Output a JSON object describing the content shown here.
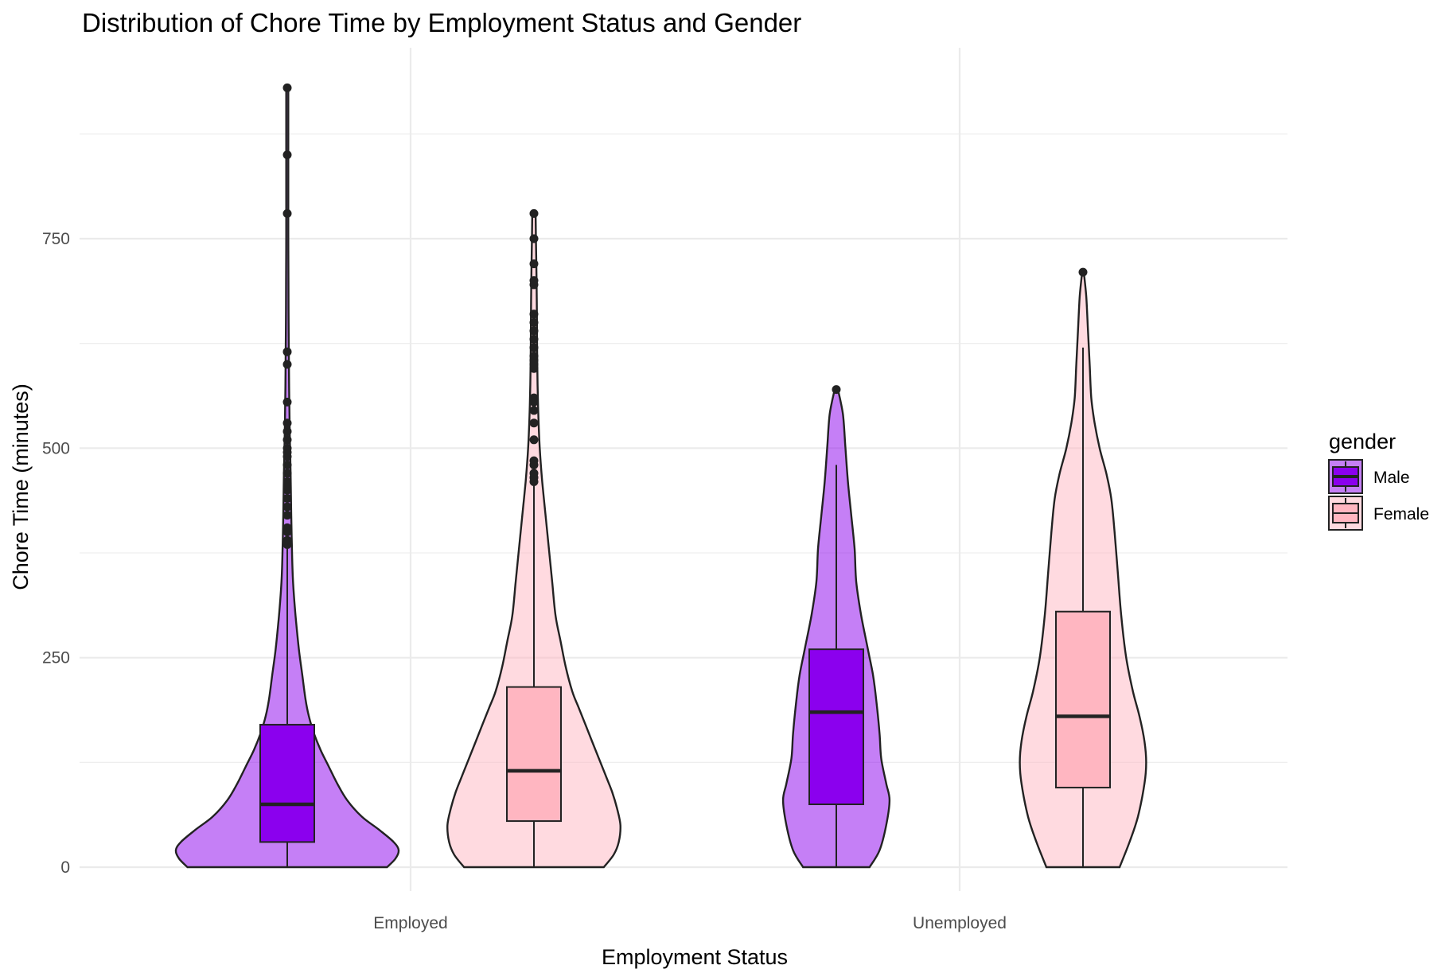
{
  "chart_data": {
    "type": "violin",
    "title": "Distribution of Chore Time by Employment Status and Gender",
    "xlabel": "Employment Status",
    "ylabel": "Chore Time (minutes)",
    "categories": [
      "Employed",
      "Unemployed"
    ],
    "ylim": [
      -30,
      980
    ],
    "yticks": [
      0,
      250,
      500,
      750
    ],
    "yminor": [
      125,
      375,
      625,
      875
    ],
    "legend": {
      "title": "gender",
      "position": "right"
    },
    "series": [
      {
        "name": "Male",
        "color": "#8B00EE",
        "violin_alpha": 0.5,
        "groups": [
          {
            "category": "Employed",
            "box": {
              "q1": 30,
              "median": 75,
              "q3": 170,
              "whisker_low": 0,
              "whisker_high": 380
            },
            "outliers": [
              385,
              390,
              400,
              405,
              420,
              430,
              440,
              450,
              455,
              460,
              470,
              480,
              490,
              495,
              500,
              510,
              520,
              530,
              555,
              600,
              615,
              780,
              850,
              930
            ],
            "density": [
              [
                0,
                0.6
              ],
              [
                10,
                0.65
              ],
              [
                20,
                0.67
              ],
              [
                30,
                0.64
              ],
              [
                45,
                0.55
              ],
              [
                60,
                0.45
              ],
              [
                80,
                0.36
              ],
              [
                100,
                0.3
              ],
              [
                120,
                0.25
              ],
              [
                140,
                0.2
              ],
              [
                160,
                0.16
              ],
              [
                180,
                0.13
              ],
              [
                200,
                0.11
              ],
              [
                230,
                0.09
              ],
              [
                260,
                0.07
              ],
              [
                300,
                0.05
              ],
              [
                340,
                0.035
              ],
              [
                380,
                0.028
              ],
              [
                420,
                0.024
              ],
              [
                470,
                0.02
              ],
              [
                520,
                0.015
              ],
              [
                560,
                0.012
              ],
              [
                600,
                0.01
              ],
              [
                650,
                0.008
              ],
              [
                700,
                0.007
              ],
              [
                760,
                0.006
              ],
              [
                820,
                0.006
              ],
              [
                880,
                0.006
              ],
              [
                930,
                0.006
              ]
            ]
          },
          {
            "category": "Unemployed",
            "box": {
              "q1": 75,
              "median": 185,
              "q3": 260,
              "whisker_low": 0,
              "whisker_high": 480
            },
            "outliers": [
              570
            ],
            "density": [
              [
                0,
                0.2
              ],
              [
                20,
                0.26
              ],
              [
                50,
                0.3
              ],
              [
                80,
                0.32
              ],
              [
                100,
                0.3
              ],
              [
                130,
                0.27
              ],
              [
                160,
                0.26
              ],
              [
                200,
                0.24
              ],
              [
                230,
                0.22
              ],
              [
                260,
                0.19
              ],
              [
                300,
                0.15
              ],
              [
                340,
                0.12
              ],
              [
                380,
                0.11
              ],
              [
                420,
                0.09
              ],
              [
                460,
                0.07
              ],
              [
                500,
                0.055
              ],
              [
                540,
                0.04
              ],
              [
                570,
                0.01
              ]
            ]
          }
        ]
      },
      {
        "name": "Female",
        "color": "#FFB6C1",
        "violin_alpha": 0.5,
        "groups": [
          {
            "category": "Employed",
            "box": {
              "q1": 55,
              "median": 115,
              "q3": 215,
              "whisker_low": 0,
              "whisker_high": 460
            },
            "outliers": [
              460,
              465,
              470,
              480,
              485,
              510,
              530,
              545,
              555,
              560,
              595,
              600,
              605,
              610,
              620,
              630,
              640,
              650,
              660,
              695,
              700,
              720,
              750,
              780
            ],
            "density": [
              [
                0,
                0.42
              ],
              [
                15,
                0.48
              ],
              [
                30,
                0.51
              ],
              [
                50,
                0.52
              ],
              [
                70,
                0.5
              ],
              [
                90,
                0.47
              ],
              [
                110,
                0.43
              ],
              [
                130,
                0.39
              ],
              [
                150,
                0.35
              ],
              [
                170,
                0.31
              ],
              [
                190,
                0.27
              ],
              [
                210,
                0.23
              ],
              [
                240,
                0.19
              ],
              [
                270,
                0.16
              ],
              [
                300,
                0.13
              ],
              [
                340,
                0.11
              ],
              [
                380,
                0.09
              ],
              [
                420,
                0.07
              ],
              [
                460,
                0.05
              ],
              [
                500,
                0.035
              ],
              [
                550,
                0.025
              ],
              [
                600,
                0.02
              ],
              [
                650,
                0.018
              ],
              [
                700,
                0.016
              ],
              [
                750,
                0.012
              ],
              [
                780,
                0.01
              ]
            ]
          },
          {
            "category": "Unemployed",
            "box": {
              "q1": 95,
              "median": 180,
              "q3": 305,
              "whisker_low": 0,
              "whisker_high": 620
            },
            "outliers": [
              710
            ],
            "density": [
              [
                0,
                0.22
              ],
              [
                30,
                0.28
              ],
              [
                60,
                0.33
              ],
              [
                100,
                0.37
              ],
              [
                125,
                0.38
              ],
              [
                150,
                0.37
              ],
              [
                180,
                0.34
              ],
              [
                210,
                0.3
              ],
              [
                250,
                0.26
              ],
              [
                300,
                0.23
              ],
              [
                350,
                0.21
              ],
              [
                400,
                0.19
              ],
              [
                440,
                0.17
              ],
              [
                470,
                0.14
              ],
              [
                500,
                0.1
              ],
              [
                530,
                0.07
              ],
              [
                560,
                0.05
              ],
              [
                600,
                0.04
              ],
              [
                640,
                0.03
              ],
              [
                680,
                0.02
              ],
              [
                710,
                0.005
              ]
            ]
          }
        ]
      }
    ]
  }
}
